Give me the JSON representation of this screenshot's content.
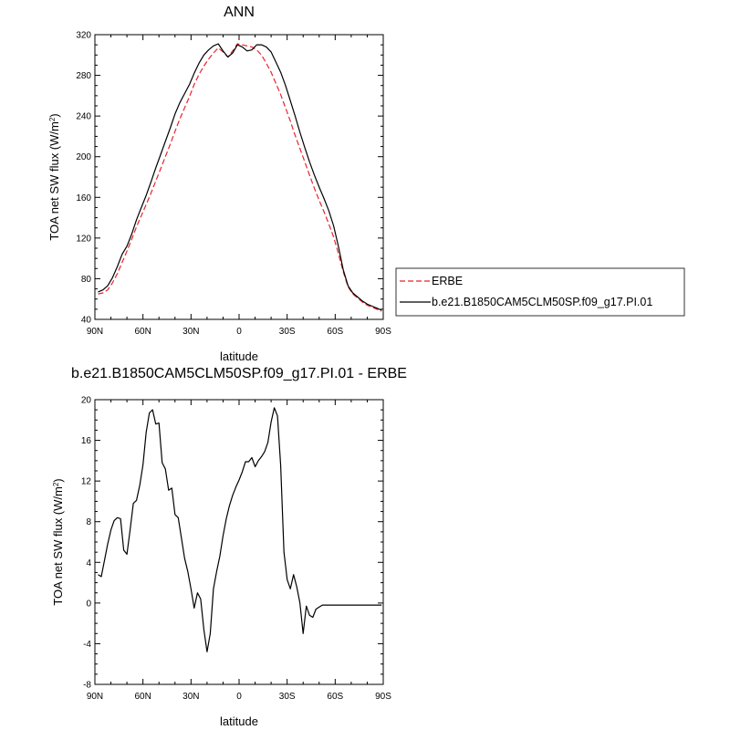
{
  "chart_data": [
    {
      "type": "line",
      "title": "ANN",
      "xlabel": "latitude",
      "ylabel": "TOA net SW flux (W/m²)",
      "xlim": [
        90,
        -90
      ],
      "ylim": [
        40,
        320
      ],
      "x_tick_values": [
        90,
        60,
        30,
        0,
        -30,
        -60,
        -90
      ],
      "x_ticks": [
        "90N",
        "60N",
        "30N",
        "0",
        "30S",
        "60S",
        "90S"
      ],
      "y_ticks": [
        40,
        80,
        120,
        160,
        200,
        240,
        280,
        320
      ],
      "legend_position": "right",
      "series": [
        {
          "name": "ERBE",
          "color": "#e8232b",
          "style": "dashed",
          "x": [
            88,
            85,
            82,
            79,
            76,
            73,
            70,
            67,
            64,
            61,
            58,
            55,
            52,
            49,
            46,
            43,
            40,
            37,
            34,
            31,
            28,
            25,
            22,
            19,
            16,
            13,
            10,
            7,
            4,
            1,
            -2,
            -5,
            -8,
            -11,
            -14,
            -17,
            -20,
            -23,
            -26,
            -29,
            -32,
            -35,
            -38,
            -41,
            -44,
            -47,
            -50,
            -53,
            -56,
            -59,
            -62,
            -65,
            -68,
            -71,
            -74,
            -77,
            -80,
            -83,
            -86,
            -89
          ],
          "y": [
            65,
            66,
            69,
            76,
            85,
            96,
            107,
            119,
            131,
            142,
            153,
            164,
            176,
            188,
            200,
            212,
            225,
            237,
            248,
            259,
            271,
            281,
            289,
            296,
            302,
            307,
            303,
            298,
            304,
            311,
            310,
            309,
            308,
            305,
            300,
            292,
            283,
            272,
            261,
            248,
            235,
            221,
            208,
            195,
            182,
            169,
            157,
            146,
            134,
            121,
            105,
            87,
            72,
            65,
            61,
            57,
            54,
            52,
            50,
            48
          ]
        },
        {
          "name": "b.e21.B1850CAM5CLM50SP.f09_g17.PI.01",
          "color": "#000000",
          "style": "solid",
          "x": [
            88,
            85,
            82,
            79,
            76,
            73,
            70,
            67,
            64,
            61,
            58,
            55,
            52,
            49,
            46,
            43,
            40,
            37,
            34,
            31,
            28,
            25,
            22,
            19,
            16,
            13,
            10,
            7,
            4,
            1,
            -2,
            -5,
            -8,
            -11,
            -14,
            -17,
            -20,
            -23,
            -26,
            -29,
            -32,
            -35,
            -38,
            -41,
            -44,
            -47,
            -50,
            -53,
            -56,
            -59,
            -62,
            -65,
            -68,
            -71,
            -74,
            -77,
            -80,
            -83,
            -86,
            -89
          ],
          "y": [
            67,
            69,
            73,
            81,
            92,
            104,
            112,
            124,
            138,
            150,
            162,
            175,
            189,
            202,
            215,
            228,
            242,
            253,
            262,
            271,
            282,
            292,
            300,
            305,
            309,
            311,
            304,
            298,
            302,
            310,
            308,
            304,
            305,
            310,
            310,
            308,
            303,
            293,
            283,
            270,
            255,
            240,
            224,
            209,
            195,
            182,
            170,
            159,
            147,
            132,
            112,
            89,
            73,
            66,
            62,
            58,
            55,
            53,
            51,
            49
          ]
        }
      ]
    },
    {
      "type": "line",
      "title": "b.e21.B1850CAM5CLM50SP.f09_g17.PI.01 - ERBE",
      "xlabel": "latitude",
      "ylabel": "TOA net SW flux (W/m²)",
      "xlim": [
        90,
        -90
      ],
      "ylim": [
        -8,
        20
      ],
      "x_tick_values": [
        90,
        60,
        30,
        0,
        -30,
        -60,
        -90
      ],
      "x_ticks": [
        "90N",
        "60N",
        "30N",
        "0",
        "30S",
        "60S",
        "90S"
      ],
      "y_ticks": [
        -8,
        -4,
        0,
        4,
        8,
        12,
        16,
        20
      ],
      "series": [
        {
          "color": "#000000",
          "style": "solid",
          "x": [
            88,
            86,
            84,
            82,
            80,
            78,
            76,
            74,
            72,
            70,
            68,
            66,
            64,
            62,
            60,
            58,
            56,
            54,
            52,
            50,
            48,
            46,
            44,
            42,
            40,
            38,
            36,
            34,
            32,
            30,
            28,
            26,
            24,
            22,
            20,
            18,
            16,
            14,
            12,
            10,
            8,
            6,
            4,
            2,
            0,
            -2,
            -4,
            -6,
            -8,
            -10,
            -12,
            -14,
            -16,
            -18,
            -20,
            -22,
            -24,
            -26,
            -28,
            -30,
            -32,
            -34,
            -36,
            -38,
            -40,
            -42,
            -44,
            -46,
            -48,
            -50,
            -52,
            -54,
            -56,
            -58,
            -60,
            -62,
            -64,
            -66,
            -68,
            -70,
            -72,
            -74,
            -76,
            -78,
            -80,
            -82,
            -84,
            -86,
            -88,
            -89
          ],
          "y": [
            2.8,
            2.6,
            4.2,
            5.8,
            7.2,
            8.1,
            8.4,
            8.3,
            5.2,
            4.8,
            7.2,
            9.8,
            10.1,
            11.6,
            13.6,
            16.8,
            18.7,
            19.0,
            17.6,
            17.7,
            13.8,
            13.2,
            11.1,
            11.3,
            8.7,
            8.4,
            6.4,
            4.4,
            3.1,
            1.4,
            -0.5,
            1.0,
            0.4,
            -2.6,
            -4.8,
            -3.0,
            1.4,
            3.1,
            4.6,
            6.6,
            8.3,
            9.6,
            10.6,
            11.4,
            12.1,
            12.9,
            13.9,
            13.9,
            14.3,
            13.4,
            14.0,
            14.4,
            14.9,
            15.8,
            17.8,
            19.2,
            18.4,
            13.5,
            5.0,
            2.3,
            1.4,
            2.8,
            1.6,
            0.0,
            -3.0,
            -0.3,
            -1.2,
            -1.4,
            -0.6,
            -0.4,
            -0.2,
            -0.2,
            -0.2,
            -0.2,
            -0.2,
            -0.2,
            -0.2,
            -0.2,
            -0.2,
            -0.2,
            -0.2,
            -0.2,
            -0.2,
            -0.2,
            -0.2,
            -0.2,
            -0.2,
            -0.2,
            -0.2,
            -0.2
          ]
        }
      ]
    }
  ]
}
